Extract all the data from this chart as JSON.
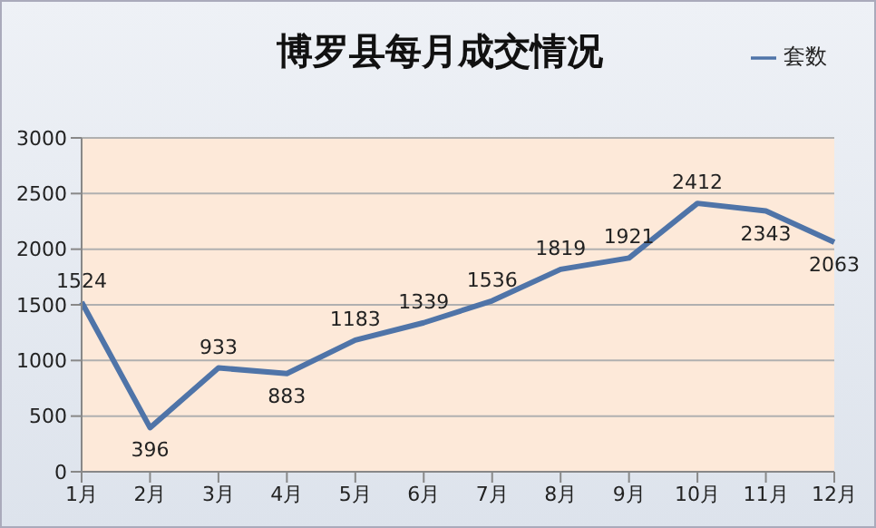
{
  "chart_data": {
    "type": "line",
    "title": "博罗县每月成交情况",
    "categories": [
      "1月",
      "2月",
      "3月",
      "4月",
      "5月",
      "6月",
      "7月",
      "8月",
      "9月",
      "10月",
      "11月",
      "12月"
    ],
    "series": [
      {
        "name": "套数",
        "color": "#4f74a8",
        "values": [
          1524,
          396,
          933,
          883,
          1183,
          1339,
          1536,
          1819,
          1921,
          2412,
          2343,
          2063
        ]
      }
    ],
    "ylim": [
      0,
      3000
    ],
    "yticks": [
      0,
      500,
      1000,
      1500,
      2000,
      2500,
      3000
    ],
    "grid": "y",
    "legend": "top right",
    "marker": "none",
    "line_style": "solid",
    "data_labels": true
  }
}
